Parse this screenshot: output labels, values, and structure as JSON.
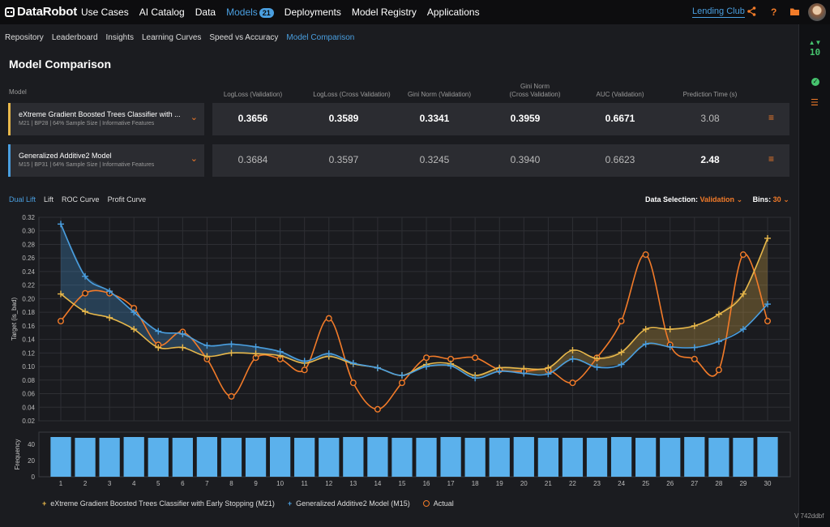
{
  "brand": "DataRobot",
  "nav": {
    "items": [
      "Use Cases",
      "AI Catalog",
      "Data",
      "Models",
      "Deployments",
      "Model Registry",
      "Applications"
    ],
    "active_index": 3,
    "models_badge": "21",
    "project": "Lending Club",
    "icons": [
      "share-icon",
      "help-icon",
      "folder-icon",
      "user-avatar"
    ]
  },
  "rail": {
    "count": "10",
    "icons": [
      "queue-arrows-icon",
      "check-circle-icon",
      "list-icon"
    ]
  },
  "subnav": {
    "items": [
      "Repository",
      "Leaderboard",
      "Insights",
      "Learning Curves",
      "Speed vs Accuracy",
      "Model Comparison"
    ],
    "active_index": 5
  },
  "page_title": "Model Comparison",
  "metrics": {
    "model_header": "Model",
    "headers": [
      "LogLoss (Validation)",
      "LogLoss (Cross Validation)",
      "Gini Norm (Validation)",
      "Gini Norm\n(Cross Validation)",
      "AUC (Validation)",
      "Prediction Time (s)"
    ],
    "models": [
      {
        "name": "eXtreme Gradient Boosted Trees Classifier with ...",
        "subtitle": "M21 | BP28 | 64% Sample Size | Informative Features",
        "color": "#e8b84b",
        "values": [
          "0.3656",
          "0.3589",
          "0.3341",
          "0.3959",
          "0.6671",
          "3.08"
        ],
        "best": [
          true,
          true,
          true,
          true,
          true,
          false
        ]
      },
      {
        "name": "Generalized Additive2 Model",
        "subtitle": "M15 | BP31 | 64% Sample Size | Informative Features",
        "color": "#4a9fe0",
        "values": [
          "0.3684",
          "0.3597",
          "0.3245",
          "0.3940",
          "0.6623",
          "2.48"
        ],
        "best": [
          false,
          false,
          false,
          false,
          false,
          true
        ]
      }
    ]
  },
  "chart_tabs": {
    "items": [
      "Dual Lift",
      "Lift",
      "ROC Curve",
      "Profit Curve"
    ],
    "active_index": 0
  },
  "data_selection": {
    "label": "Data Selection:",
    "value": "Validation",
    "bins_label": "Bins:",
    "bins_value": "30"
  },
  "chart_data": {
    "type": "line",
    "ylabel": "Target (is_bad)",
    "ylim": [
      0.02,
      0.32
    ],
    "yticks": [
      "0.02",
      "0.04",
      "0.06",
      "0.08",
      "0.10",
      "0.12",
      "0.14",
      "0.16",
      "0.18",
      "0.20",
      "0.22",
      "0.24",
      "0.26",
      "0.28",
      "0.30",
      "0.32"
    ],
    "x": [
      1,
      2,
      3,
      4,
      5,
      6,
      7,
      8,
      9,
      10,
      11,
      12,
      13,
      14,
      15,
      16,
      17,
      18,
      19,
      20,
      21,
      22,
      23,
      24,
      25,
      26,
      27,
      28,
      29,
      30
    ],
    "grid": true,
    "series": [
      {
        "name": "eXtreme Gradient Boosted Trees Classifier with Early Stopping (M21)",
        "color": "#e8b84b",
        "marker": "plus",
        "values": [
          0.207,
          0.181,
          0.172,
          0.155,
          0.128,
          0.128,
          0.115,
          0.12,
          0.119,
          0.116,
          0.105,
          0.115,
          0.104,
          0.098,
          0.087,
          0.103,
          0.104,
          0.087,
          0.098,
          0.097,
          0.098,
          0.124,
          0.112,
          0.121,
          0.155,
          0.155,
          0.16,
          0.177,
          0.207,
          0.289
        ]
      },
      {
        "name": "Generalized Additive2 Model (M15)",
        "color": "#4a9fe0",
        "marker": "plus",
        "values": [
          0.31,
          0.233,
          0.211,
          0.18,
          0.152,
          0.148,
          0.131,
          0.133,
          0.129,
          0.122,
          0.108,
          0.119,
          0.105,
          0.098,
          0.087,
          0.1,
          0.101,
          0.083,
          0.093,
          0.09,
          0.089,
          0.111,
          0.099,
          0.103,
          0.133,
          0.129,
          0.128,
          0.137,
          0.155,
          0.192
        ]
      },
      {
        "name": "Actual",
        "color": "#f27b29",
        "marker": "circle",
        "values": [
          0.167,
          0.208,
          0.208,
          0.186,
          0.132,
          0.151,
          0.111,
          0.056,
          0.113,
          0.111,
          0.095,
          0.171,
          0.076,
          0.037,
          0.076,
          0.113,
          0.111,
          0.113,
          0.095,
          0.093,
          0.095,
          0.076,
          0.113,
          0.167,
          0.265,
          0.132,
          0.111,
          0.095,
          0.265,
          0.167
        ]
      }
    ],
    "frequency": {
      "ylabel": "Frequency",
      "yticks": [
        "0",
        "20",
        "40"
      ],
      "ylim": [
        0,
        55
      ],
      "values": [
        49,
        48,
        48,
        49,
        48,
        48,
        49,
        48,
        48,
        49,
        48,
        48,
        49,
        49,
        48,
        48,
        49,
        48,
        48,
        49,
        48,
        48,
        48,
        49,
        48,
        48,
        49,
        48,
        48,
        49
      ],
      "color": "#5bb1ec"
    }
  },
  "version": "V 742ddbf"
}
